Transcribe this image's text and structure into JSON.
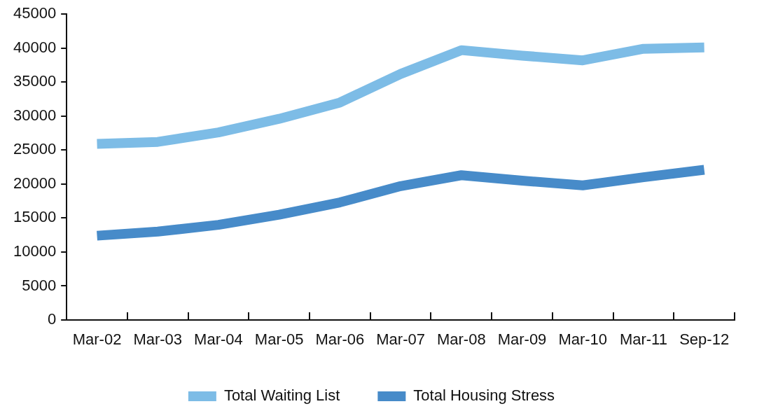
{
  "chart_data": {
    "type": "line",
    "categories": [
      "Mar-02",
      "Mar-03",
      "Mar-04",
      "Mar-05",
      "Mar-06",
      "Mar-07",
      "Mar-08",
      "Mar-09",
      "Mar-10",
      "Mar-11",
      "Sep-12"
    ],
    "series": [
      {
        "name": "Total Waiting List",
        "color": "#7dbce6",
        "values": [
          25900,
          26200,
          27600,
          29600,
          32000,
          36200,
          39700,
          38900,
          38200,
          39900,
          40100
        ]
      },
      {
        "name": "Total Housing Stress",
        "color": "#478bc9",
        "values": [
          12400,
          13000,
          14000,
          15500,
          17300,
          19700,
          21300,
          20500,
          19800,
          21000,
          22100
        ]
      }
    ],
    "ylim": [
      0,
      45000
    ],
    "yticks": [
      0,
      5000,
      10000,
      15000,
      20000,
      25000,
      30000,
      35000,
      40000,
      45000
    ],
    "grid": false,
    "legend": "bottom",
    "marker": "none",
    "line_style": "solid"
  }
}
